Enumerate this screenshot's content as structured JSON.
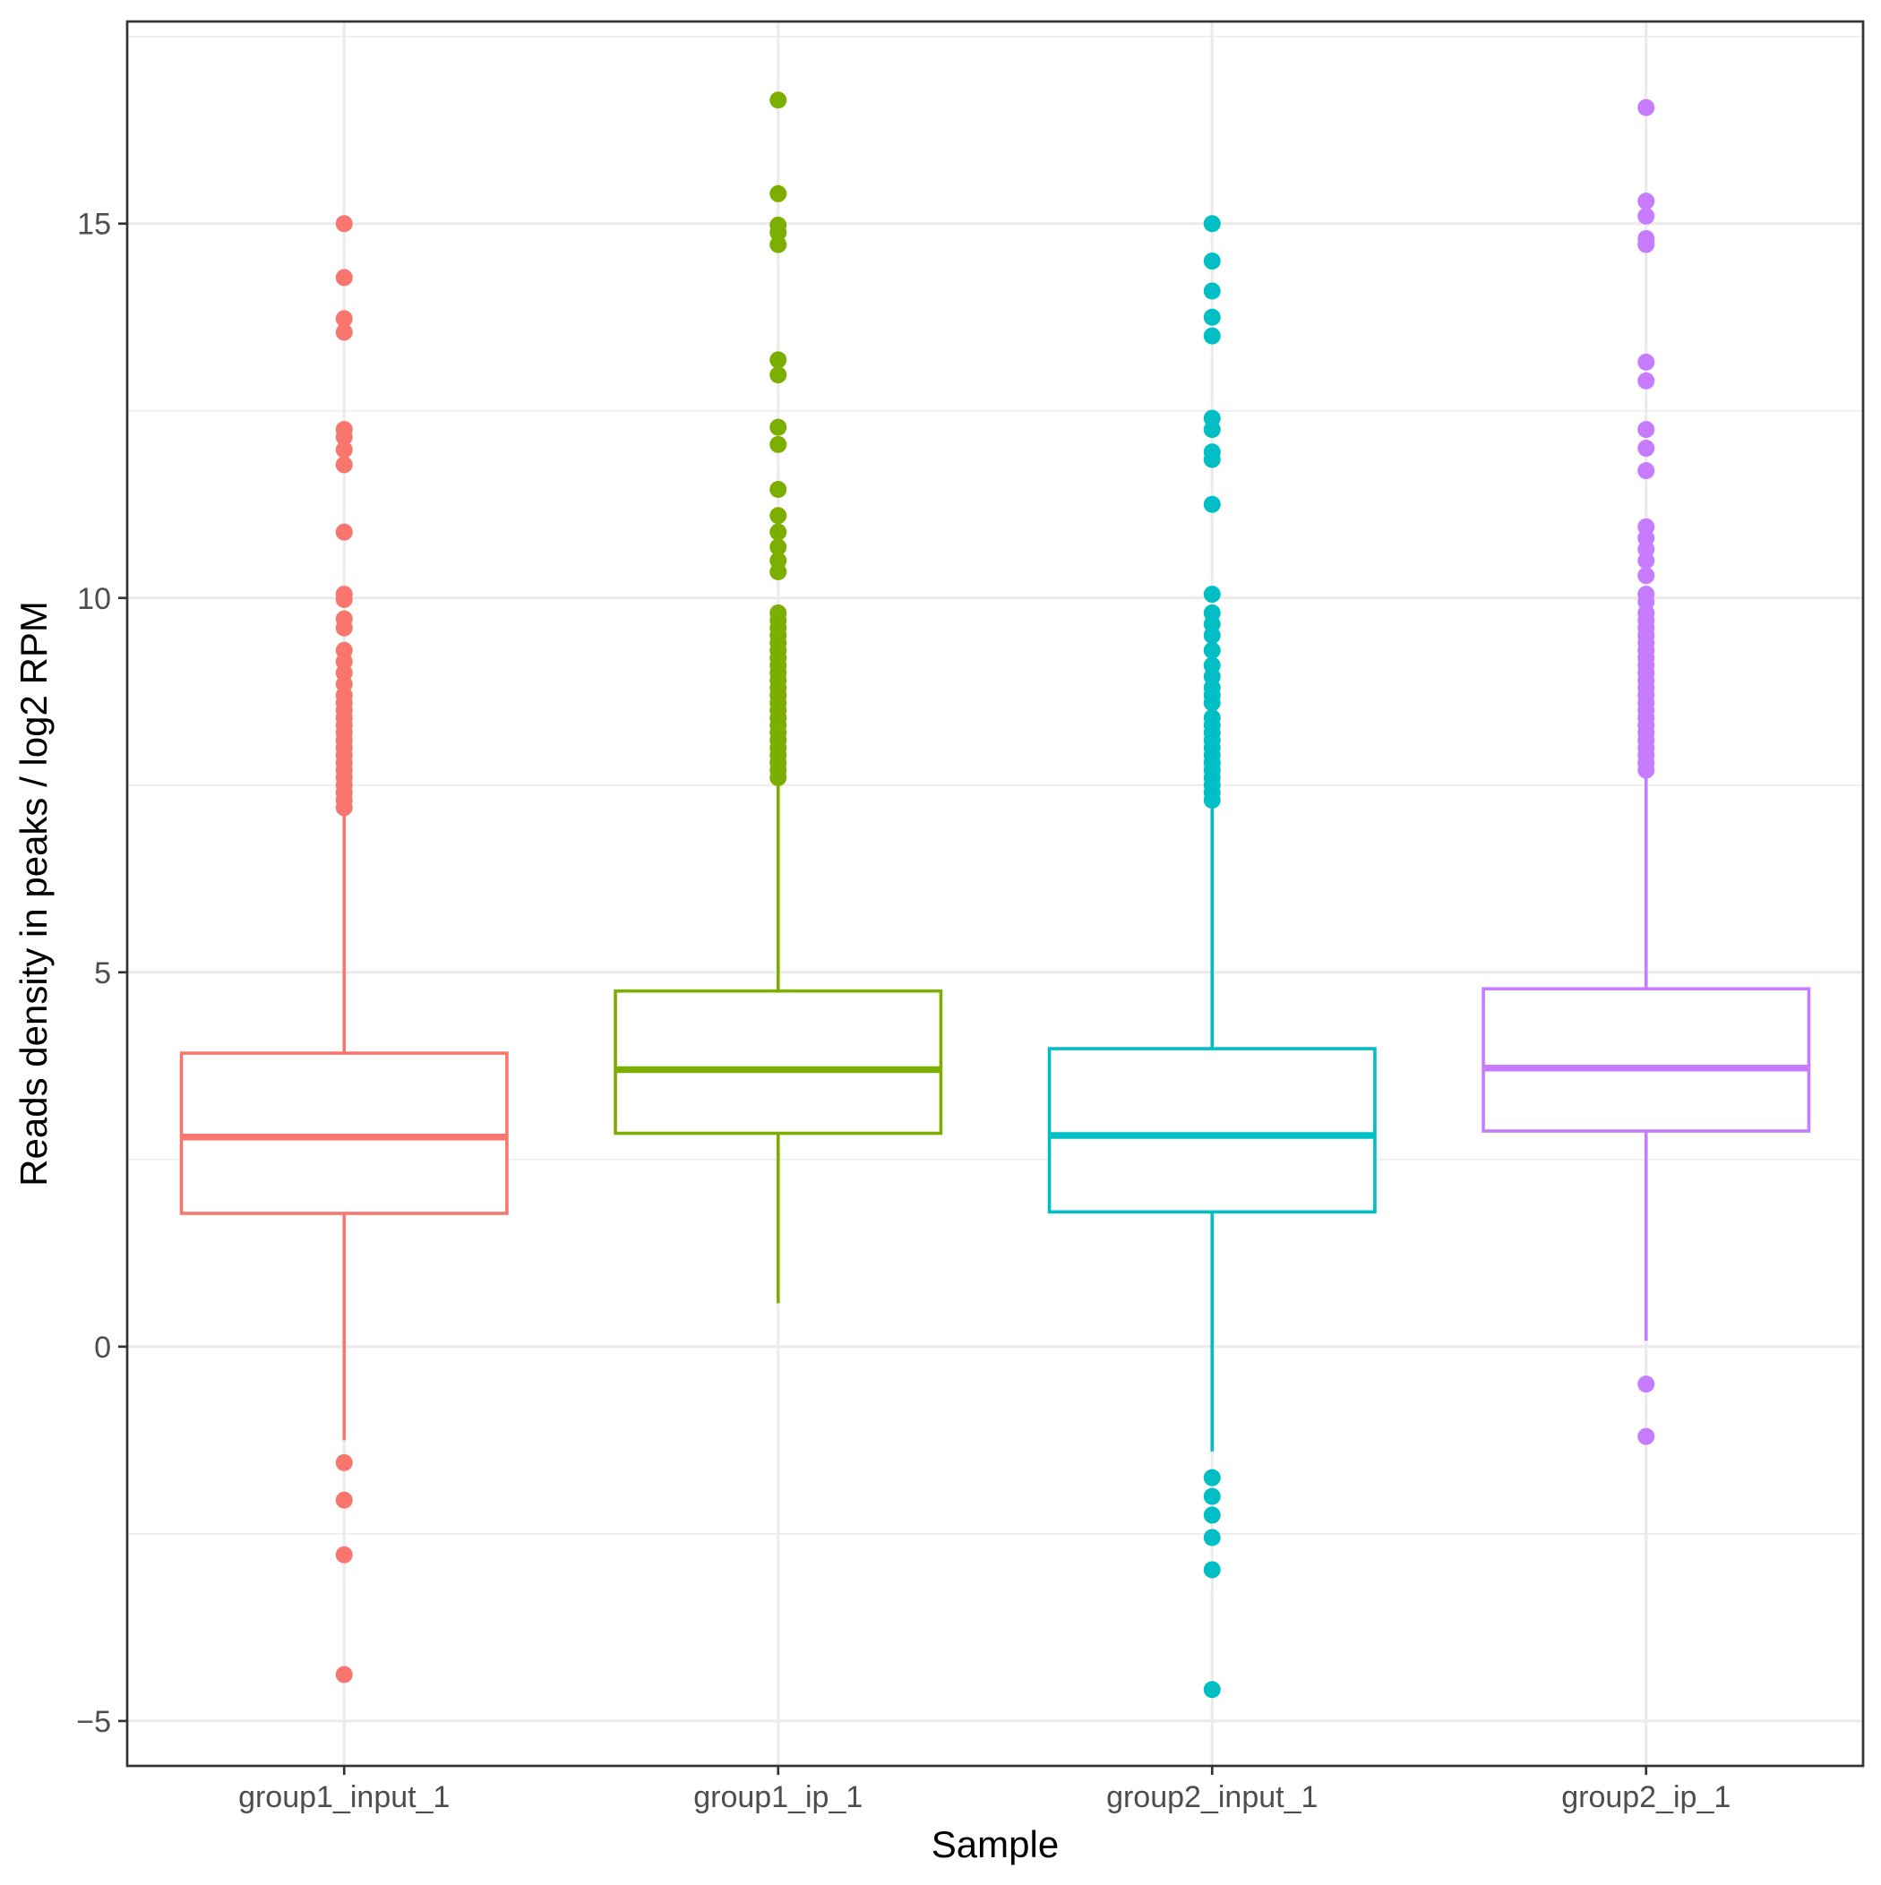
{
  "chart_data": {
    "type": "boxplot",
    "xlabel": "Sample",
    "ylabel": "Reads density in peaks / log2 RPM",
    "ylim": [
      -5.6,
      17.7
    ],
    "yticks": [
      -5,
      0,
      5,
      10,
      15
    ],
    "grid": true,
    "legend": "none",
    "categories": [
      "group1_input_1",
      "group1_ip_1",
      "group2_input_1",
      "group2_ip_1"
    ],
    "series": [
      {
        "category": "group1_input_1",
        "color": "#F8766D",
        "whisker_low": -1.25,
        "q1": 1.78,
        "median": 2.8,
        "q3": 3.92,
        "whisker_high": 7.1,
        "outliers": [
          15.0,
          14.28,
          13.73,
          13.55,
          12.25,
          12.15,
          11.98,
          11.78,
          10.88,
          10.05,
          9.98,
          9.72,
          9.6,
          9.3,
          9.15,
          9.0,
          8.85,
          8.7,
          8.6,
          8.5,
          8.4,
          8.3,
          8.2,
          8.1,
          8.0,
          7.9,
          7.8,
          7.7,
          7.6,
          7.5,
          7.4,
          7.3,
          7.2,
          -1.55,
          -2.05,
          -2.78,
          -4.38
        ]
      },
      {
        "category": "group1_ip_1",
        "color": "#7CAE00",
        "whisker_low": 0.58,
        "q1": 2.85,
        "median": 3.7,
        "q3": 4.75,
        "whisker_high": 7.5,
        "outliers": [
          16.65,
          15.4,
          14.98,
          14.88,
          14.72,
          13.18,
          12.98,
          12.28,
          12.05,
          11.45,
          11.1,
          10.88,
          10.68,
          10.5,
          10.35,
          9.8,
          9.7,
          9.6,
          9.5,
          9.4,
          9.3,
          9.2,
          9.1,
          9.0,
          8.9,
          8.8,
          8.7,
          8.6,
          8.5,
          8.4,
          8.3,
          8.2,
          8.1,
          8.0,
          7.9,
          7.8,
          7.7,
          7.6
        ]
      },
      {
        "category": "group2_input_1",
        "color": "#00BFC4",
        "whisker_low": -1.4,
        "q1": 1.8,
        "median": 2.82,
        "q3": 3.98,
        "whisker_high": 7.2,
        "outliers": [
          15.0,
          14.5,
          14.1,
          13.75,
          13.5,
          12.4,
          12.25,
          11.95,
          11.85,
          11.25,
          10.05,
          9.8,
          9.65,
          9.5,
          9.3,
          9.1,
          8.95,
          8.8,
          8.7,
          8.6,
          8.4,
          8.3,
          8.2,
          8.1,
          8.0,
          7.9,
          7.8,
          7.7,
          7.6,
          7.5,
          7.4,
          7.3,
          -1.75,
          -2.0,
          -2.25,
          -2.55,
          -2.98,
          -4.58
        ]
      },
      {
        "category": "group2_ip_1",
        "color": "#C77CFF",
        "whisker_low": 0.08,
        "q1": 2.88,
        "median": 3.72,
        "q3": 4.78,
        "whisker_high": 7.6,
        "outliers": [
          16.55,
          15.3,
          15.1,
          14.8,
          14.72,
          13.15,
          12.9,
          12.25,
          12.0,
          11.7,
          10.95,
          10.8,
          10.65,
          10.5,
          10.3,
          10.05,
          9.95,
          9.8,
          9.7,
          9.6,
          9.5,
          9.4,
          9.3,
          9.2,
          9.1,
          9.0,
          8.9,
          8.8,
          8.7,
          8.6,
          8.5,
          8.4,
          8.3,
          8.2,
          8.1,
          8.0,
          7.9,
          7.8,
          7.7,
          -0.5,
          -1.2
        ]
      }
    ]
  }
}
